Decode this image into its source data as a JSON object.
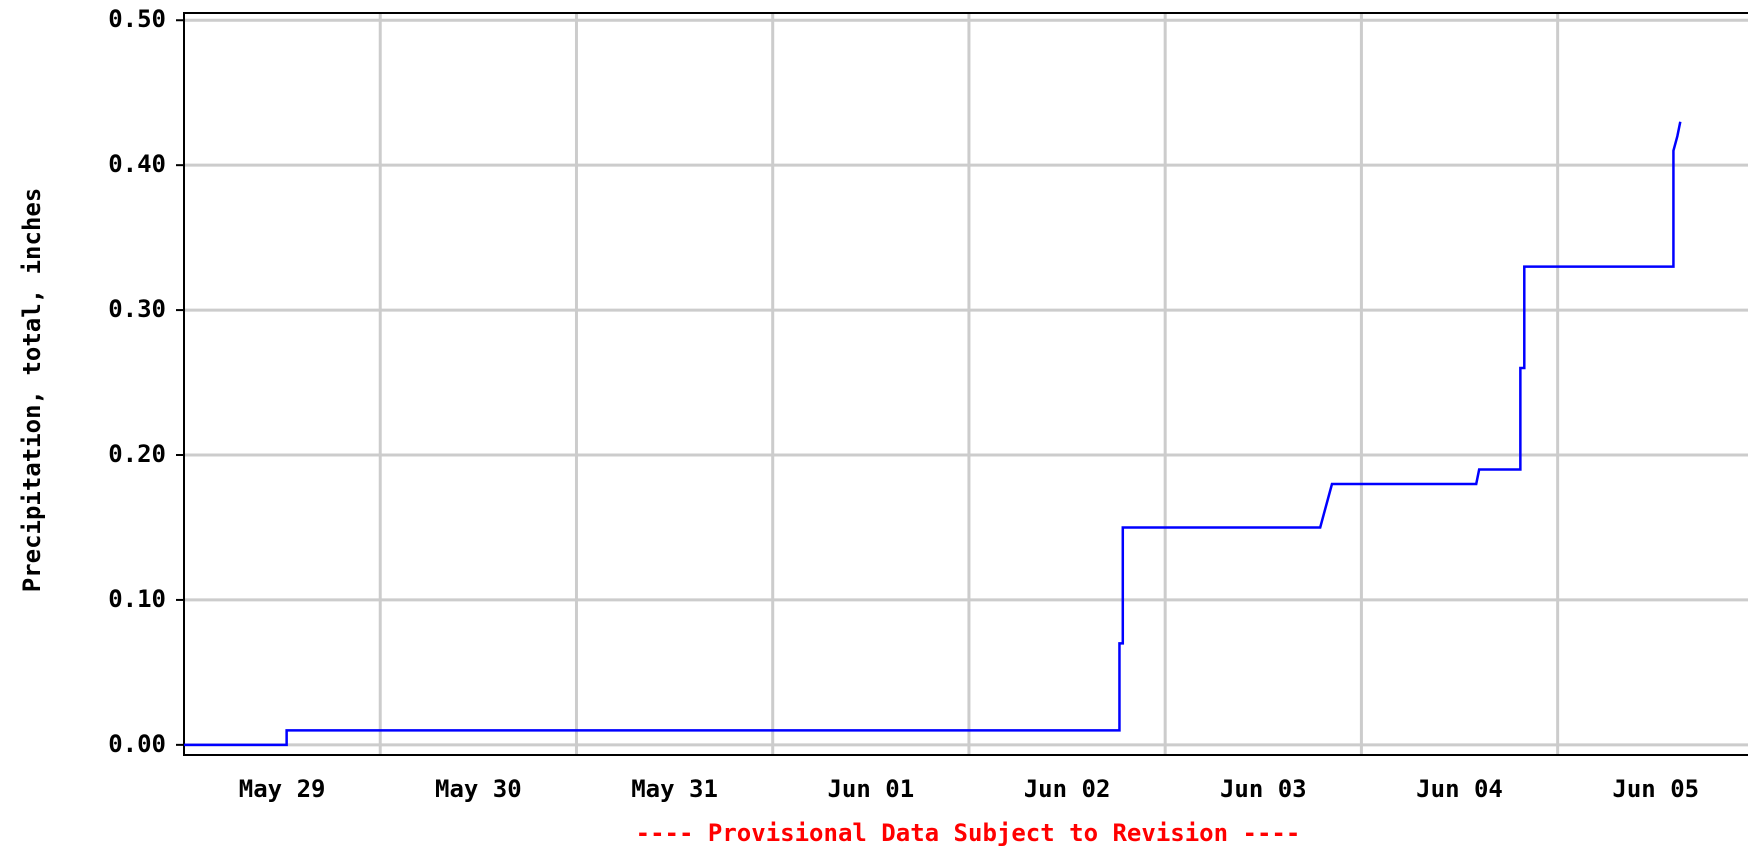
{
  "chart_data": {
    "type": "line",
    "y_label": "Precipitation, total, inches",
    "footer": "---- Provisional Data Subject to Revision ----",
    "footer_color": "#ff0000",
    "xlim": [
      0,
      7.97
    ],
    "xticks": [
      {
        "value": 0.5,
        "label": "May 29"
      },
      {
        "value": 1.5,
        "label": "May 30"
      },
      {
        "value": 2.5,
        "label": "May 31"
      },
      {
        "value": 3.5,
        "label": "Jun 01"
      },
      {
        "value": 4.5,
        "label": "Jun 02"
      },
      {
        "value": 5.5,
        "label": "Jun 03"
      },
      {
        "value": 6.5,
        "label": "Jun 04"
      },
      {
        "value": 7.5,
        "label": "Jun 05"
      }
    ],
    "x_gridlines": [
      1,
      2,
      3,
      4,
      5,
      6,
      7
    ],
    "ylim": [
      -0.007,
      0.505
    ],
    "yticks": [
      {
        "value": 0,
        "label": "0.00"
      },
      {
        "value": 0.1,
        "label": "0.10"
      },
      {
        "value": 0.2,
        "label": "0.20"
      },
      {
        "value": 0.3,
        "label": "0.30"
      },
      {
        "value": 0.4,
        "label": "0.40"
      },
      {
        "value": 0.5,
        "label": "0.50"
      }
    ],
    "grid": true,
    "series": [
      {
        "color": "#0000ff",
        "x": [
          0,
          0.523,
          0.523,
          4.767,
          4.767,
          4.784,
          4.784,
          5.79,
          5.81,
          5.83,
          5.85,
          6.585,
          6.6,
          6.81,
          6.81,
          6.83,
          6.83,
          7.59,
          7.59,
          7.61,
          7.625
        ],
        "values": [
          0,
          0,
          0.01,
          0.01,
          0.07,
          0.07,
          0.15,
          0.15,
          0.16,
          0.17,
          0.18,
          0.18,
          0.19,
          0.19,
          0.26,
          0.26,
          0.33,
          0.33,
          0.41,
          0.42,
          0.43
        ]
      }
    ]
  }
}
